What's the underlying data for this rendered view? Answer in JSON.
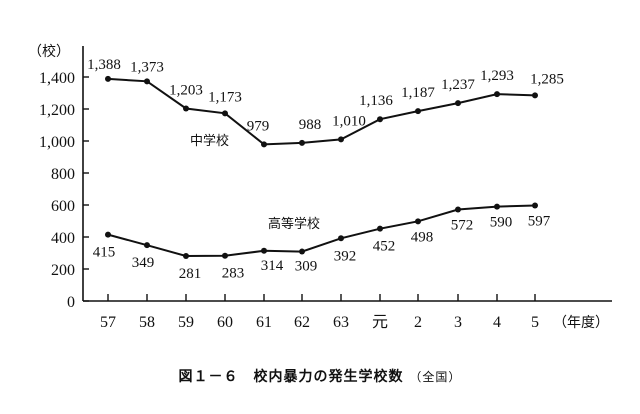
{
  "chart_data": {
    "type": "line",
    "title": "図１－６　校内暴力の発生学校数",
    "subtitle": "（全国）",
    "xlabel": "（年度）",
    "ylabel": "（校）",
    "categories": [
      "57",
      "58",
      "59",
      "60",
      "61",
      "62",
      "63",
      "元",
      "2",
      "3",
      "4",
      "5"
    ],
    "yticks": [
      "0",
      "200",
      "400",
      "600",
      "800",
      "1,000",
      "1,200",
      "1,400"
    ],
    "ylim": [
      0,
      1400
    ],
    "grid": false,
    "legend": "inline labels",
    "series": [
      {
        "name": "中学校",
        "values": [
          1388,
          1373,
          1203,
          1173,
          979,
          988,
          1010,
          1136,
          1187,
          1237,
          1293,
          1285
        ],
        "labels": [
          "1,388",
          "1,373",
          "1,203",
          "1,173",
          "979",
          "988",
          "1,010",
          "1,136",
          "1,187",
          "1,237",
          "1,293",
          "1,285"
        ]
      },
      {
        "name": "高等学校",
        "values": [
          415,
          349,
          281,
          283,
          314,
          309,
          392,
          452,
          498,
          572,
          590,
          597
        ],
        "labels": [
          "415",
          "349",
          "281",
          "283",
          "314",
          "309",
          "392",
          "452",
          "498",
          "572",
          "590",
          "597"
        ]
      }
    ]
  },
  "caption": {
    "main": "図１－６　校内暴力の発生学校数",
    "sub": "（全国）"
  }
}
